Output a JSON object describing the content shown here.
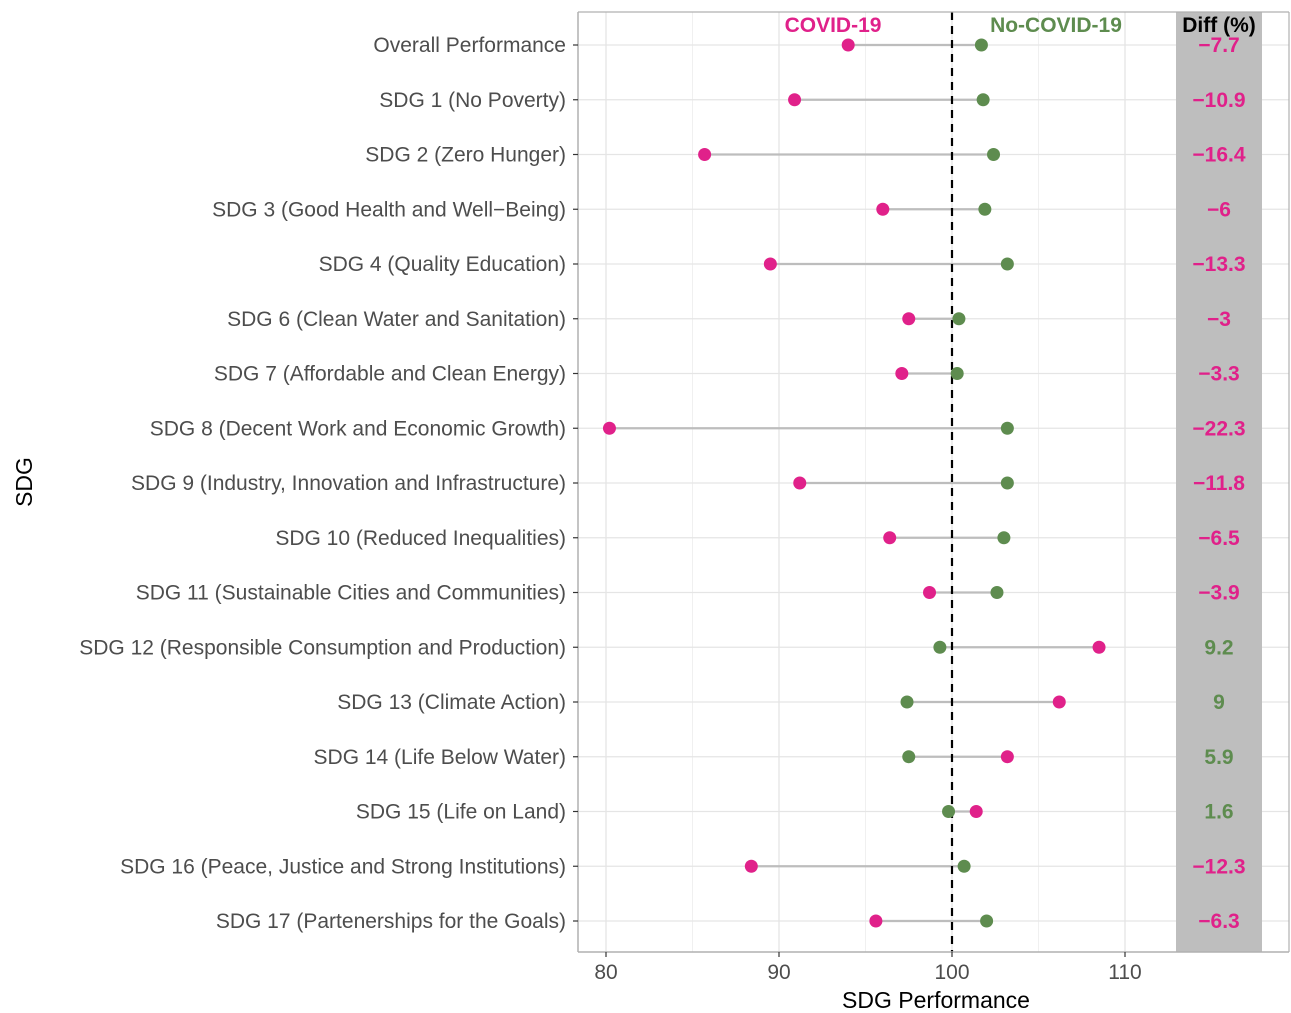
{
  "chart_data": {
    "type": "dumbbell",
    "title": "",
    "xlabel": "SDG Performance",
    "ylabel": "SDG",
    "xlim": [
      78.5,
      118.5
    ],
    "xticks": [
      80,
      90,
      100,
      110
    ],
    "reference_line": 100,
    "grid": true,
    "series": [
      {
        "name": "COVID-19",
        "color": "#e0218a"
      },
      {
        "name": "No-COVID-19",
        "color": "#5e8c4f"
      }
    ],
    "diff_header": "Diff (%)",
    "colors": {
      "covid": "#e0218a",
      "nocovid": "#5e8c4f",
      "segment": "#bdbdbd",
      "diff_panel": "#bebebe",
      "grid": "#e5e5e5"
    },
    "rows": [
      {
        "label": "Overall Performance",
        "covid": 94.0,
        "nocovid": 101.7,
        "diff": "−7.7"
      },
      {
        "label": "SDG 1 (No Poverty)",
        "covid": 90.9,
        "nocovid": 101.8,
        "diff": "−10.9"
      },
      {
        "label": "SDG 2 (Zero Hunger)",
        "covid": 85.7,
        "nocovid": 102.4,
        "diff": "−16.4"
      },
      {
        "label": "SDG 3 (Good Health and Well−Being)",
        "covid": 96.0,
        "nocovid": 101.9,
        "diff": "−6"
      },
      {
        "label": "SDG 4 (Quality Education)",
        "covid": 89.5,
        "nocovid": 103.2,
        "diff": "−13.3"
      },
      {
        "label": "SDG 6 (Clean Water and Sanitation)",
        "covid": 97.5,
        "nocovid": 100.4,
        "diff": "−3"
      },
      {
        "label": "SDG 7 (Affordable and Clean Energy)",
        "covid": 97.1,
        "nocovid": 100.3,
        "diff": "−3.3"
      },
      {
        "label": "SDG 8 (Decent Work and Economic Growth)",
        "covid": 80.2,
        "nocovid": 103.2,
        "diff": "−22.3"
      },
      {
        "label": "SDG 9 (Industry, Innovation and Infrastructure)",
        "covid": 91.2,
        "nocovid": 103.2,
        "diff": "−11.8"
      },
      {
        "label": "SDG 10 (Reduced Inequalities)",
        "covid": 96.4,
        "nocovid": 103.0,
        "diff": "−6.5"
      },
      {
        "label": "SDG 11 (Sustainable Cities and Communities)",
        "covid": 98.7,
        "nocovid": 102.6,
        "diff": "−3.9"
      },
      {
        "label": "SDG 12 (Responsible Consumption and Production)",
        "covid": 108.5,
        "nocovid": 99.3,
        "diff": "9.2"
      },
      {
        "label": "SDG 13 (Climate Action)",
        "covid": 106.2,
        "nocovid": 97.4,
        "diff": "9"
      },
      {
        "label": "SDG 14 (Life Below Water)",
        "covid": 103.2,
        "nocovid": 97.5,
        "diff": "5.9"
      },
      {
        "label": "SDG 15 (Life on Land)",
        "covid": 101.4,
        "nocovid": 99.8,
        "diff": "1.6"
      },
      {
        "label": "SDG 16 (Peace, Justice and Strong Institutions)",
        "covid": 88.4,
        "nocovid": 100.7,
        "diff": "−12.3"
      },
      {
        "label": "SDG 17 (Partenerships for the Goals)",
        "covid": 95.6,
        "nocovid": 102.0,
        "diff": "−6.3"
      }
    ]
  }
}
